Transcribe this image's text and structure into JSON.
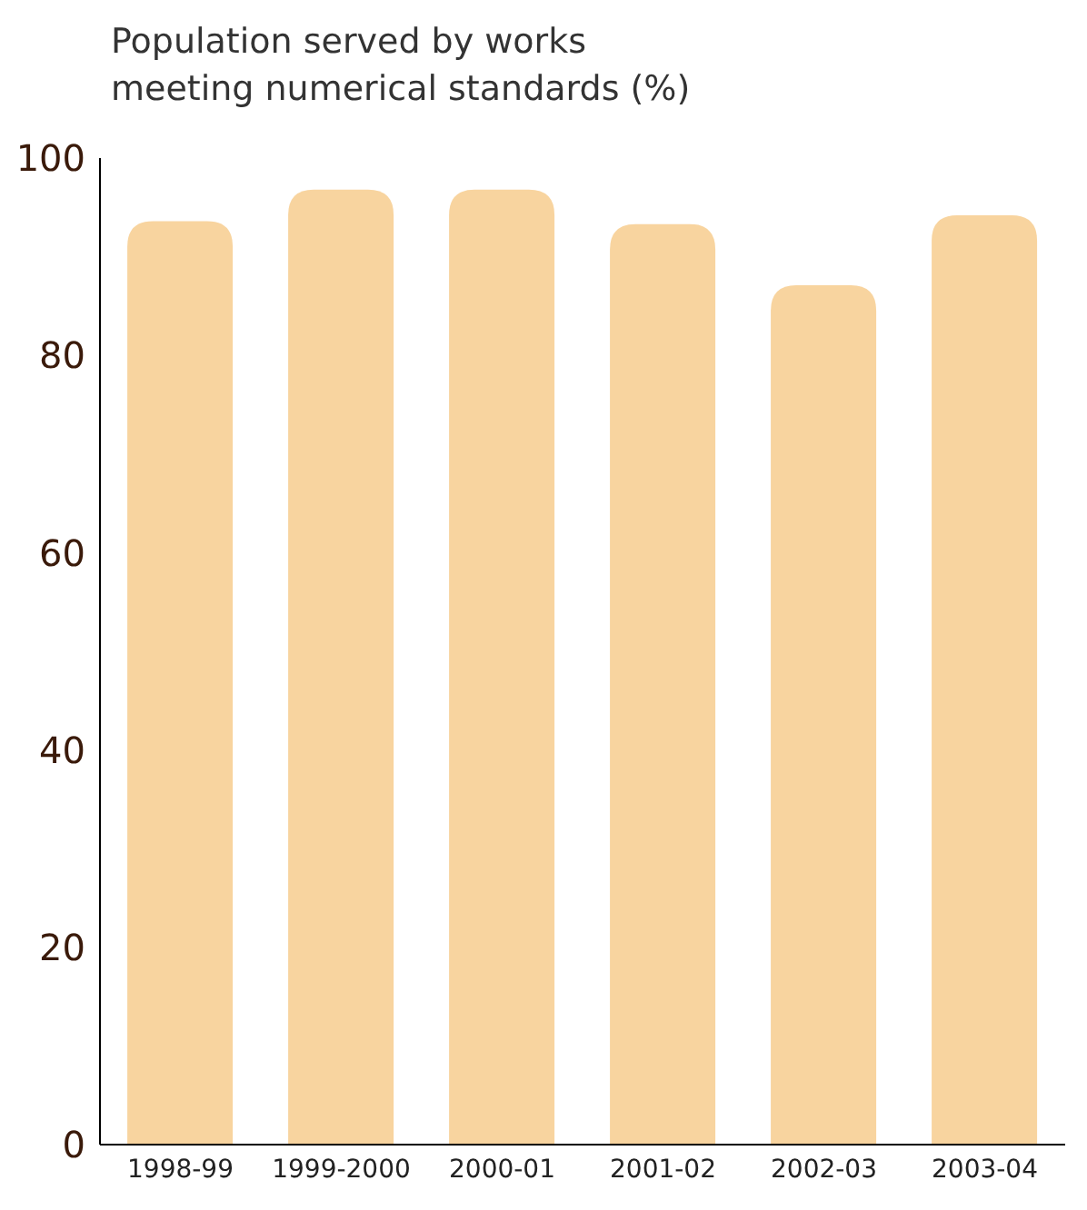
{
  "chart_data": {
    "type": "bar",
    "title": "Population served by works meeting numerical standards (%)",
    "categories": [
      "1998-99",
      "1999-2000",
      "2000-01",
      "2001-02",
      "2002-03",
      "2003-04"
    ],
    "values": [
      93.6,
      96.8,
      96.8,
      93.3,
      87.1,
      94.2
    ],
    "color": "#f8d49f",
    "ylim": [
      0,
      100
    ],
    "yticks": [
      0,
      20,
      40,
      60,
      80,
      100
    ],
    "grid": false,
    "legend": false
  }
}
